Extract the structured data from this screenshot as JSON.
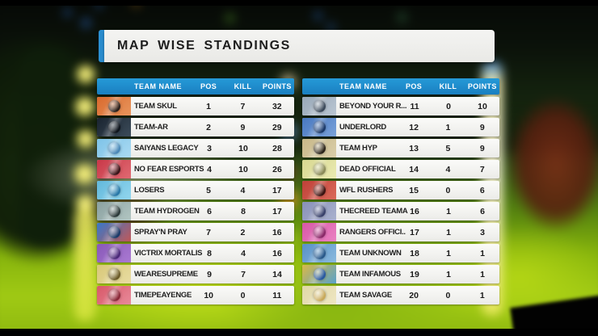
{
  "title": "MAP WISE STANDINGS",
  "columns": {
    "team": "TEAM NAME",
    "pos": "POS",
    "kill": "KILL",
    "points": "POINTS"
  },
  "colors": {
    "header_blue": "#1d8ccb",
    "title_accent": "#2b8fd2",
    "row_bg": "#f2f2f0"
  },
  "tables": [
    {
      "rows": [
        {
          "team": "TEAM SKUL",
          "pos": "1",
          "kill": "7",
          "points": "32",
          "logo": {
            "name": "team-skul-logo",
            "c1": "#d96a2e",
            "c2": "#e8955c",
            "emblem": "#2a1f1a"
          }
        },
        {
          "team": "TEAM-AR",
          "pos": "2",
          "kill": "9",
          "points": "29",
          "logo": {
            "name": "team-ar-logo",
            "c1": "#1a2430",
            "c2": "#3c4c5a",
            "emblem": "#0e141c"
          }
        },
        {
          "team": "SAIYANS LEGACY",
          "pos": "3",
          "kill": "10",
          "points": "28",
          "logo": {
            "name": "saiyans-legacy-logo",
            "c1": "#7ec3e8",
            "c2": "#aadaf2",
            "emblem": "#4a88b8"
          }
        },
        {
          "team": "NO FEAR ESPORTS",
          "pos": "4",
          "kill": "10",
          "points": "26",
          "logo": {
            "name": "no-fear-esports-logo",
            "c1": "#c83848",
            "c2": "#e06a72",
            "emblem": "#3a1418"
          }
        },
        {
          "team": "LOSERS",
          "pos": "5",
          "kill": "4",
          "points": "17",
          "logo": {
            "name": "losers-logo",
            "c1": "#62b8dc",
            "c2": "#92d6ee",
            "emblem": "#2878a8"
          }
        },
        {
          "team": "TEAM HYDROGEN",
          "pos": "6",
          "kill": "8",
          "points": "17",
          "logo": {
            "name": "team-hydrogen-logo",
            "c1": "#8aa0a0",
            "c2": "#b2c6c2",
            "emblem": "#2a3838"
          }
        },
        {
          "team": "SPRAY'N PRAY",
          "pos": "7",
          "kill": "2",
          "points": "16",
          "logo": {
            "name": "sprayn-pray-logo",
            "c1": "#3878c8",
            "c2": "#c05858",
            "emblem": "#1a3a68"
          }
        },
        {
          "team": "VICTRIX MORTALIS",
          "pos": "8",
          "kill": "4",
          "points": "16",
          "logo": {
            "name": "victrix-mortalis-logo",
            "c1": "#8858b8",
            "c2": "#aa7ad2",
            "emblem": "#4a2878"
          }
        },
        {
          "team": "WEARESUPREME",
          "pos": "9",
          "kill": "7",
          "points": "14",
          "logo": {
            "name": "wearesupreme-logo",
            "c1": "#d8c878",
            "c2": "#e8dca2",
            "emblem": "#6a5a28"
          }
        },
        {
          "team": "TIMEPEAYENGE",
          "pos": "10",
          "kill": "0",
          "points": "11",
          "logo": {
            "name": "timepeayenge-logo",
            "c1": "#d85868",
            "c2": "#e88a9a",
            "emblem": "#8a2838"
          }
        }
      ]
    },
    {
      "rows": [
        {
          "team": "BEYOND YOUR R...",
          "pos": "11",
          "kill": "0",
          "points": "10",
          "logo": {
            "name": "beyond-your-reach-logo",
            "c1": "#98a8b8",
            "c2": "#bac6d2",
            "emblem": "#3a4858"
          }
        },
        {
          "team": "UNDERLORD",
          "pos": "12",
          "kill": "1",
          "points": "9",
          "logo": {
            "name": "underlord-logo",
            "c1": "#4878c0",
            "c2": "#7aa2da",
            "emblem": "#1a3868"
          }
        },
        {
          "team": "TEAM HYP",
          "pos": "13",
          "kill": "5",
          "points": "9",
          "logo": {
            "name": "team-hyp-logo",
            "c1": "#c8b888",
            "c2": "#daceaa",
            "emblem": "#2a2218"
          }
        },
        {
          "team": "DEAD OFFICIAL",
          "pos": "14",
          "kill": "4",
          "points": "7",
          "logo": {
            "name": "dead-official-logo",
            "c1": "#d8d890",
            "c2": "#eaeab2",
            "emblem": "#8a8a58"
          }
        },
        {
          "team": "WFL RUSHERS",
          "pos": "15",
          "kill": "0",
          "points": "6",
          "logo": {
            "name": "wfl-rushers-logo",
            "c1": "#c04038",
            "c2": "#da6a5a",
            "emblem": "#3a1210"
          }
        },
        {
          "team": "THECREED TEAMA",
          "pos": "16",
          "kill": "1",
          "points": "6",
          "logo": {
            "name": "thecreed-teama-logo",
            "c1": "#8890b8",
            "c2": "#aab2ce",
            "emblem": "#38406a"
          }
        },
        {
          "team": "RANGERS OFFICI..",
          "pos": "17",
          "kill": "1",
          "points": "3",
          "logo": {
            "name": "rangers-official-logo",
            "c1": "#d858a8",
            "c2": "#ea82c2",
            "emblem": "#8a2868"
          }
        },
        {
          "team": "TEAM UNKNOWN",
          "pos": "18",
          "kill": "1",
          "points": "1",
          "logo": {
            "name": "team-unknown-logo",
            "c1": "#5890c8",
            "c2": "#8abade",
            "emblem": "#28588a"
          }
        },
        {
          "team": "TEAM INFAMOUS",
          "pos": "19",
          "kill": "1",
          "points": "1",
          "logo": {
            "name": "team-infamous-logo",
            "c1": "#d8b848",
            "c2": "#5aa2ca",
            "emblem": "#2858a0"
          }
        },
        {
          "team": "TEAM SAVAGE",
          "pos": "20",
          "kill": "0",
          "points": "1",
          "logo": {
            "name": "team-savage-logo",
            "c1": "#e0d8a8",
            "c2": "#eee6c2",
            "emblem": "#c8a858"
          }
        }
      ]
    }
  ]
}
